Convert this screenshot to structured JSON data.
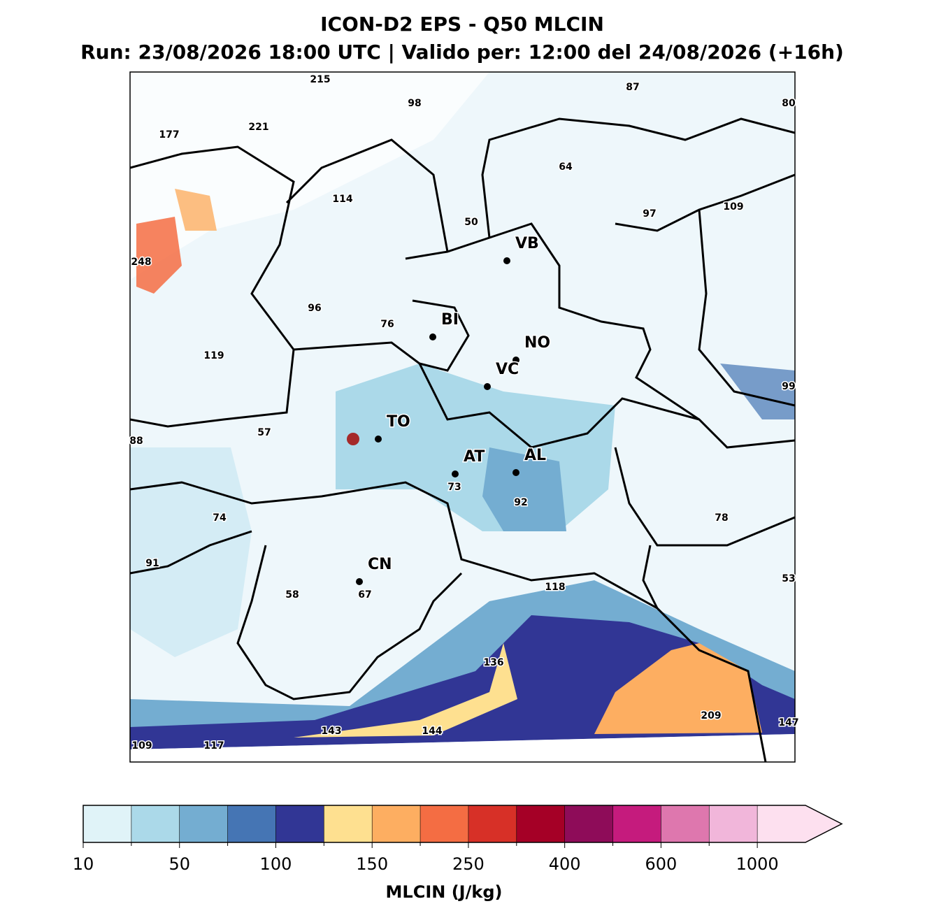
{
  "header": {
    "title": "ICON-D2 EPS - Q50 MLCIN",
    "subtitle": "Run: 23/08/2026 18:00 UTC | Valido per: 12:00 del 24/08/2026 (+16h)"
  },
  "map": {
    "cities": [
      "VB",
      "BI",
      "NO",
      "VC",
      "TO",
      "AT",
      "AL",
      "CN"
    ],
    "value_labels": [
      "215",
      "87",
      "98",
      "80",
      "177",
      "221",
      "64",
      "114",
      "109",
      "97",
      "50",
      "248",
      "96",
      "76",
      "119",
      "99",
      "88",
      "57",
      "73",
      "92",
      "74",
      "78",
      "91",
      "53",
      "118",
      "58",
      "67",
      "136",
      "209",
      "147",
      "143",
      "144",
      "109",
      "117"
    ]
  },
  "colorbar": {
    "colors": [
      "#e0f3f8",
      "#abd9e9",
      "#74add1",
      "#4575b4",
      "#313695",
      "#fee090",
      "#fdae61",
      "#f46d43",
      "#d73027",
      "#a50026",
      "#8e0c59",
      "#c51b7d",
      "#de77ae",
      "#f1b6da",
      "#fde0ef"
    ],
    "ticks": [
      10,
      50,
      100,
      150,
      250,
      400,
      600,
      1000
    ],
    "label": "MLCIN (J/kg)"
  }
}
